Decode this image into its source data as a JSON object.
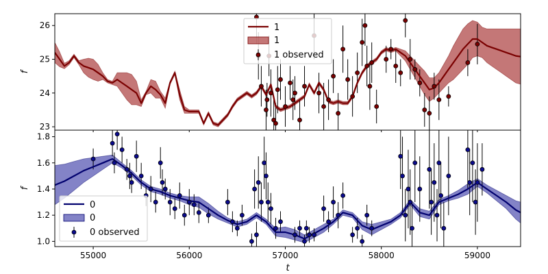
{
  "chart_data": [
    {
      "type": "line",
      "panel": "top",
      "xlabel": "",
      "ylabel": "f",
      "xlim": [
        54600,
        59450
      ],
      "ylim": [
        22.9,
        26.35
      ],
      "yticks": [
        23,
        24,
        25,
        26
      ],
      "grid": false,
      "legend_position": "top-center",
      "colors": {
        "line": "#7a0000",
        "band": "#b04a4a",
        "points": "#7a0000"
      },
      "legend": {
        "line": "1",
        "band": "1",
        "points": "1 observed"
      },
      "series": [
        {
          "name": "1",
          "kind": "mean",
          "x": [
            54600,
            54650,
            54700,
            54750,
            54800,
            54850,
            54900,
            54950,
            55000,
            55050,
            55100,
            55150,
            55200,
            55250,
            55300,
            55350,
            55400,
            55450,
            55500,
            55550,
            55600,
            55650,
            55700,
            55750,
            55800,
            55850,
            55900,
            55950,
            56000,
            56050,
            56100,
            56150,
            56200,
            56250,
            56300,
            56350,
            56400,
            56450,
            56500,
            56550,
            56600,
            56650,
            56700,
            56750,
            56800,
            56850,
            56900,
            56950,
            57000,
            57050,
            57100,
            57150,
            57200,
            57250,
            57300,
            57350,
            57400,
            57450,
            57500,
            57550,
            57600,
            57650,
            57700,
            57750,
            57800,
            57850,
            57900,
            57950,
            58000,
            58050,
            58100,
            58150,
            58200,
            58250,
            58300,
            58350,
            58400,
            58450,
            58500,
            58550,
            58600,
            58650,
            58700,
            58750,
            58800,
            58850,
            58900,
            58950,
            59000,
            59050,
            59100,
            59150,
            59200,
            59250,
            59300,
            59350,
            59400,
            59450
          ],
          "y": [
            25.2,
            25.0,
            24.8,
            24.9,
            25.1,
            24.9,
            24.8,
            24.75,
            24.7,
            24.6,
            24.5,
            24.35,
            24.3,
            24.4,
            24.3,
            24.2,
            24.1,
            24.0,
            23.7,
            24.0,
            24.2,
            24.1,
            23.95,
            23.7,
            24.3,
            24.6,
            23.95,
            23.5,
            23.45,
            23.45,
            23.45,
            23.1,
            23.4,
            23.1,
            23.05,
            23.2,
            23.35,
            23.6,
            23.8,
            23.9,
            24.0,
            23.9,
            24.0,
            24.2,
            23.95,
            24.25,
            23.6,
            23.5,
            23.55,
            23.6,
            23.7,
            23.8,
            23.9,
            24.25,
            24.0,
            24.3,
            24.1,
            23.75,
            23.7,
            23.75,
            23.7,
            23.7,
            23.9,
            24.3,
            24.6,
            24.8,
            24.9,
            25.0,
            25.2,
            25.3,
            25.25,
            25.3,
            25.2,
            25.1,
            24.9,
            24.7,
            24.5,
            24.3,
            24.1,
            24.15,
            24.3,
            24.5,
            24.7,
            24.9,
            25.1,
            25.3,
            25.45,
            25.6,
            25.6,
            25.5,
            25.4,
            25.35,
            25.3,
            25.25,
            25.2,
            25.15,
            25.1,
            25.08
          ]
        },
        {
          "name": "1",
          "kind": "band",
          "half_width": [
            0.3,
            0.22,
            0.08,
            0.06,
            0.05,
            0.06,
            0.2,
            0.28,
            0.3,
            0.25,
            0.1,
            0.05,
            0.05,
            0.2,
            0.3,
            0.4,
            0.45,
            0.35,
            0.1,
            0.05,
            0.2,
            0.25,
            0.1,
            0.15,
            0.05,
            0.05,
            0.15,
            0.1,
            0.05,
            0.05,
            0.05,
            0.05,
            0.05,
            0.05,
            0.05,
            0.05,
            0.05,
            0.05,
            0.05,
            0.05,
            0.05,
            0.05,
            0.05,
            0.05,
            0.05,
            0.05,
            0.05,
            0.05,
            0.05,
            0.05,
            0.05,
            0.05,
            0.05,
            0.05,
            0.05,
            0.05,
            0.05,
            0.05,
            0.05,
            0.05,
            0.05,
            0.05,
            0.05,
            0.05,
            0.05,
            0.05,
            0.05,
            0.05,
            0.05,
            0.05,
            0.05,
            0.05,
            0.1,
            0.15,
            0.2,
            0.25,
            0.3,
            0.35,
            0.35,
            0.3,
            0.3,
            0.35,
            0.4,
            0.5,
            0.55,
            0.6,
            0.6,
            0.55,
            0.5,
            0.45,
            0.5,
            0.55,
            0.6,
            0.65,
            0.7,
            0.75,
            0.8,
            0.82
          ]
        },
        {
          "name": "1 observed",
          "kind": "points",
          "x": [
            56700,
            56720,
            56750,
            56800,
            56810,
            56830,
            56850,
            56880,
            56900,
            56920,
            56950,
            57000,
            57050,
            57080,
            57100,
            57150,
            57200,
            57300,
            57350,
            57400,
            57450,
            57500,
            57550,
            57600,
            57650,
            57700,
            57750,
            57800,
            57830,
            57850,
            57880,
            57900,
            57950,
            58050,
            58100,
            58150,
            58200,
            58250,
            58300,
            58350,
            58400,
            58450,
            58500,
            58550,
            58600,
            58700,
            58900,
            59000
          ],
          "y": [
            26.25,
            25.1,
            24.2,
            23.5,
            23.8,
            25.1,
            24.0,
            23.2,
            23.1,
            24.1,
            24.4,
            23.6,
            24.3,
            23.8,
            24.0,
            23.2,
            24.2,
            25.7,
            24.0,
            23.6,
            23.8,
            24.5,
            23.4,
            25.3,
            24.4,
            23.9,
            24.6,
            25.5,
            26.0,
            24.8,
            24.2,
            24.9,
            23.6,
            25.0,
            25.3,
            24.8,
            24.6,
            26.15,
            25.0,
            24.7,
            24.3,
            23.5,
            23.4,
            24.2,
            23.8,
            23.9,
            24.9,
            25.45
          ],
          "err": [
            0.8,
            0.7,
            0.6,
            0.6,
            0.5,
            0.6,
            0.7,
            0.6,
            0.6,
            0.7,
            0.6,
            0.6,
            0.5,
            0.6,
            0.5,
            0.6,
            0.6,
            0.7,
            0.6,
            0.7,
            0.6,
            0.5,
            0.6,
            0.7,
            0.6,
            0.6,
            0.6,
            0.7,
            0.6,
            0.6,
            0.7,
            0.6,
            0.5,
            0.4,
            0.3,
            0.5,
            0.4,
            0.5,
            0.6,
            0.3,
            0.4,
            0.5,
            0.5,
            0.4,
            0.6,
            0.3,
            0.4,
            0.6
          ]
        }
      ]
    },
    {
      "type": "line",
      "panel": "bottom",
      "xlabel": "t",
      "ylabel": "f",
      "xlim": [
        54600,
        59450
      ],
      "ylim": [
        0.96,
        1.85
      ],
      "xticks": [
        55000,
        56000,
        57000,
        58000,
        59000
      ],
      "yticks": [
        1.0,
        1.2,
        1.4,
        1.6,
        1.8
      ],
      "grid": false,
      "legend_position": "lower-left",
      "colors": {
        "line": "#00006e",
        "band": "#5a5ab4",
        "points": "#0a0a8c"
      },
      "legend": {
        "line": "0",
        "band": "0",
        "points": "0 observed"
      },
      "series": [
        {
          "name": "0",
          "kind": "mean",
          "x": [
            54600,
            54700,
            54800,
            54900,
            55000,
            55100,
            55200,
            55300,
            55400,
            55500,
            55600,
            55700,
            55800,
            55900,
            56000,
            56100,
            56200,
            56300,
            56400,
            56500,
            56600,
            56700,
            56800,
            56900,
            57000,
            57100,
            57200,
            57300,
            57400,
            57500,
            57600,
            57700,
            57800,
            57900,
            58000,
            58100,
            58200,
            58300,
            58400,
            58500,
            58600,
            58700,
            58800,
            58900,
            59000,
            59100,
            59200,
            59300,
            59400,
            59450
          ],
          "y": [
            1.43,
            1.46,
            1.5,
            1.54,
            1.57,
            1.6,
            1.63,
            1.58,
            1.52,
            1.45,
            1.4,
            1.38,
            1.35,
            1.33,
            1.31,
            1.3,
            1.25,
            1.2,
            1.16,
            1.13,
            1.15,
            1.2,
            1.15,
            1.07,
            1.07,
            1.05,
            1.02,
            1.06,
            1.1,
            1.15,
            1.22,
            1.2,
            1.12,
            1.09,
            1.12,
            1.15,
            1.2,
            1.3,
            1.22,
            1.2,
            1.3,
            1.33,
            1.36,
            1.4,
            1.45,
            1.4,
            1.35,
            1.3,
            1.24,
            1.22
          ]
        },
        {
          "name": "0",
          "kind": "band",
          "half_width": [
            0.15,
            0.13,
            0.11,
            0.09,
            0.07,
            0.05,
            0.03,
            0.02,
            0.02,
            0.02,
            0.02,
            0.02,
            0.02,
            0.02,
            0.03,
            0.04,
            0.04,
            0.03,
            0.02,
            0.02,
            0.02,
            0.02,
            0.02,
            0.03,
            0.04,
            0.04,
            0.03,
            0.03,
            0.03,
            0.02,
            0.02,
            0.02,
            0.03,
            0.04,
            0.03,
            0.02,
            0.02,
            0.02,
            0.03,
            0.03,
            0.02,
            0.02,
            0.03,
            0.04,
            0.03,
            0.03,
            0.04,
            0.05,
            0.07,
            0.08
          ]
        },
        {
          "name": "0 observed",
          "kind": "points",
          "x": [
            55000,
            55200,
            55220,
            55250,
            55300,
            55350,
            55380,
            55400,
            55450,
            55500,
            55550,
            55600,
            55650,
            55700,
            55720,
            55750,
            55800,
            55850,
            55900,
            55950,
            56000,
            56050,
            56100,
            56200,
            56400,
            56450,
            56500,
            56550,
            56650,
            56680,
            56700,
            56720,
            56750,
            56780,
            56800,
            56820,
            56850,
            56900,
            56950,
            57100,
            57150,
            57200,
            57220,
            57250,
            57300,
            57400,
            57450,
            57500,
            57550,
            57600,
            57700,
            57750,
            57800,
            57850,
            57900,
            58200,
            58220,
            58250,
            58280,
            58300,
            58320,
            58350,
            58400,
            58500,
            58520,
            58550,
            58580,
            58600,
            58620,
            58650,
            58700,
            58900,
            58920,
            58950,
            58980,
            59000,
            59050
          ],
          "y": [
            1.63,
            1.75,
            1.6,
            1.82,
            1.7,
            1.55,
            1.5,
            1.45,
            1.65,
            1.5,
            1.35,
            1.4,
            1.3,
            1.6,
            1.45,
            1.4,
            1.3,
            1.25,
            1.35,
            1.2,
            1.3,
            1.28,
            1.22,
            1.2,
            1.3,
            1.15,
            1.1,
            1.2,
            1.0,
            1.4,
            1.05,
            1.45,
            1.3,
            1.6,
            1.5,
            1.3,
            1.25,
            1.1,
            1.15,
            1.05,
            1.1,
            1.0,
            1.1,
            1.05,
            1.05,
            1.25,
            1.15,
            1.3,
            1.2,
            1.35,
            1.05,
            1.1,
            1.0,
            1.2,
            1.1,
            1.65,
            1.5,
            1.2,
            1.4,
            1.3,
            1.1,
            1.6,
            1.4,
            1.55,
            1.3,
            1.45,
            1.2,
            1.6,
            1.35,
            1.1,
            1.5,
            1.7,
            1.45,
            1.6,
            1.3,
            1.45,
            1.55
          ],
          "err": [
            0.08,
            0.1,
            0.08,
            0.12,
            0.1,
            0.08,
            0.1,
            0.08,
            0.12,
            0.1,
            0.08,
            0.1,
            0.08,
            0.12,
            0.1,
            0.08,
            0.1,
            0.08,
            0.1,
            0.08,
            0.1,
            0.08,
            0.08,
            0.06,
            0.1,
            0.08,
            0.06,
            0.08,
            0.06,
            0.15,
            0.1,
            0.2,
            0.15,
            0.2,
            0.18,
            0.15,
            0.12,
            0.08,
            0.08,
            0.06,
            0.06,
            0.05,
            0.06,
            0.06,
            0.05,
            0.1,
            0.08,
            0.12,
            0.1,
            0.1,
            0.06,
            0.08,
            0.05,
            0.08,
            0.06,
            0.25,
            0.3,
            0.2,
            0.3,
            0.25,
            0.2,
            0.3,
            0.25,
            0.3,
            0.25,
            0.3,
            0.2,
            0.3,
            0.25,
            0.2,
            0.3,
            0.3,
            0.25,
            0.3,
            0.25,
            0.3,
            0.2
          ]
        }
      ]
    }
  ]
}
